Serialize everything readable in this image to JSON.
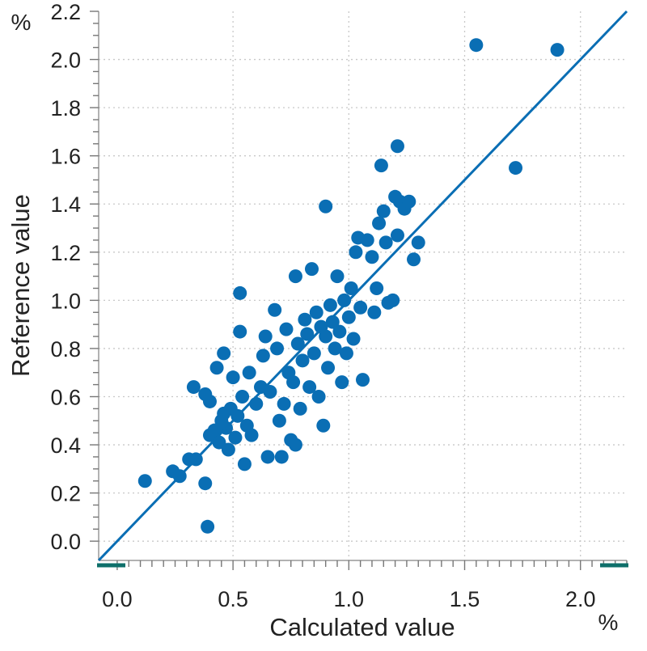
{
  "chart_data": {
    "type": "scatter",
    "xlabel": "Calculated value",
    "ylabel": "Reference value",
    "x_unit": "%",
    "y_unit": "%",
    "xlim": [
      -0.08,
      2.2
    ],
    "ylim": [
      -0.08,
      2.2
    ],
    "x_ticks": [
      0.0,
      0.5,
      1.0,
      1.5,
      2.0
    ],
    "x_tick_labels": [
      "0.0",
      "0.5",
      "1.0",
      "1.5",
      "2.0"
    ],
    "y_ticks": [
      0.0,
      0.2,
      0.4,
      0.6,
      0.8,
      1.0,
      1.2,
      1.4,
      1.6,
      1.8,
      2.0,
      2.2
    ],
    "y_tick_labels": [
      "0.0",
      "0.2",
      "0.4",
      "0.6",
      "0.8",
      "1.0",
      "1.2",
      "1.4",
      "1.6",
      "1.8",
      "2.0",
      "2.2"
    ],
    "grid": true,
    "reference_line": {
      "type": "identity",
      "slope": 1,
      "intercept": 0
    },
    "colors": {
      "points": "#0a6eb4",
      "line": "#0a6eb4",
      "axis": "#999999",
      "grid": "#c8c8c8",
      "marker": "#0e6f6a"
    },
    "series": [
      {
        "values": [
          [
            0.12,
            0.25
          ],
          [
            0.24,
            0.29
          ],
          [
            0.27,
            0.27
          ],
          [
            0.31,
            0.34
          ],
          [
            0.34,
            0.34
          ],
          [
            0.33,
            0.64
          ],
          [
            0.38,
            0.24
          ],
          [
            0.39,
            0.06
          ],
          [
            0.38,
            0.61
          ],
          [
            0.4,
            0.44
          ],
          [
            0.4,
            0.58
          ],
          [
            0.42,
            0.46
          ],
          [
            0.43,
            0.72
          ],
          [
            0.44,
            0.41
          ],
          [
            0.45,
            0.5
          ],
          [
            0.46,
            0.53
          ],
          [
            0.46,
            0.78
          ],
          [
            0.47,
            0.47
          ],
          [
            0.48,
            0.38
          ],
          [
            0.49,
            0.55
          ],
          [
            0.5,
            0.68
          ],
          [
            0.51,
            0.43
          ],
          [
            0.52,
            0.52
          ],
          [
            0.53,
            0.87
          ],
          [
            0.53,
            1.03
          ],
          [
            0.54,
            0.6
          ],
          [
            0.55,
            0.32
          ],
          [
            0.56,
            0.48
          ],
          [
            0.57,
            0.7
          ],
          [
            0.58,
            0.44
          ],
          [
            0.6,
            0.57
          ],
          [
            0.62,
            0.64
          ],
          [
            0.63,
            0.77
          ],
          [
            0.64,
            0.85
          ],
          [
            0.65,
            0.35
          ],
          [
            0.66,
            0.62
          ],
          [
            0.68,
            0.96
          ],
          [
            0.69,
            0.8
          ],
          [
            0.7,
            0.5
          ],
          [
            0.71,
            0.35
          ],
          [
            0.72,
            0.57
          ],
          [
            0.73,
            0.88
          ],
          [
            0.74,
            0.7
          ],
          [
            0.75,
            0.42
          ],
          [
            0.76,
            0.66
          ],
          [
            0.77,
            0.4
          ],
          [
            0.77,
            1.1
          ],
          [
            0.78,
            0.82
          ],
          [
            0.79,
            0.55
          ],
          [
            0.8,
            0.75
          ],
          [
            0.81,
            0.92
          ],
          [
            0.82,
            0.86
          ],
          [
            0.83,
            0.64
          ],
          [
            0.84,
            1.13
          ],
          [
            0.85,
            0.78
          ],
          [
            0.86,
            0.95
          ],
          [
            0.87,
            0.6
          ],
          [
            0.88,
            0.89
          ],
          [
            0.89,
            0.48
          ],
          [
            0.9,
            1.39
          ],
          [
            0.9,
            0.85
          ],
          [
            0.91,
            0.72
          ],
          [
            0.92,
            0.98
          ],
          [
            0.93,
            0.91
          ],
          [
            0.94,
            0.8
          ],
          [
            0.95,
            1.1
          ],
          [
            0.96,
            0.87
          ],
          [
            0.97,
            0.66
          ],
          [
            0.98,
            1.0
          ],
          [
            0.99,
            0.78
          ],
          [
            1.0,
            0.93
          ],
          [
            1.01,
            1.05
          ],
          [
            1.02,
            0.84
          ],
          [
            1.03,
            1.2
          ],
          [
            1.04,
            1.26
          ],
          [
            1.05,
            0.97
          ],
          [
            1.06,
            0.67
          ],
          [
            1.08,
            1.25
          ],
          [
            1.1,
            1.18
          ],
          [
            1.11,
            0.95
          ],
          [
            1.12,
            1.05
          ],
          [
            1.13,
            1.32
          ],
          [
            1.14,
            1.56
          ],
          [
            1.15,
            1.37
          ],
          [
            1.16,
            1.24
          ],
          [
            1.17,
            0.99
          ],
          [
            1.19,
            1.0
          ],
          [
            1.2,
            1.43
          ],
          [
            1.21,
            1.64
          ],
          [
            1.21,
            1.27
          ],
          [
            1.22,
            1.41
          ],
          [
            1.24,
            1.38
          ],
          [
            1.26,
            1.41
          ],
          [
            1.28,
            1.17
          ],
          [
            1.3,
            1.24
          ],
          [
            1.55,
            2.06
          ],
          [
            1.72,
            1.55
          ],
          [
            1.9,
            2.04
          ]
        ]
      }
    ]
  }
}
